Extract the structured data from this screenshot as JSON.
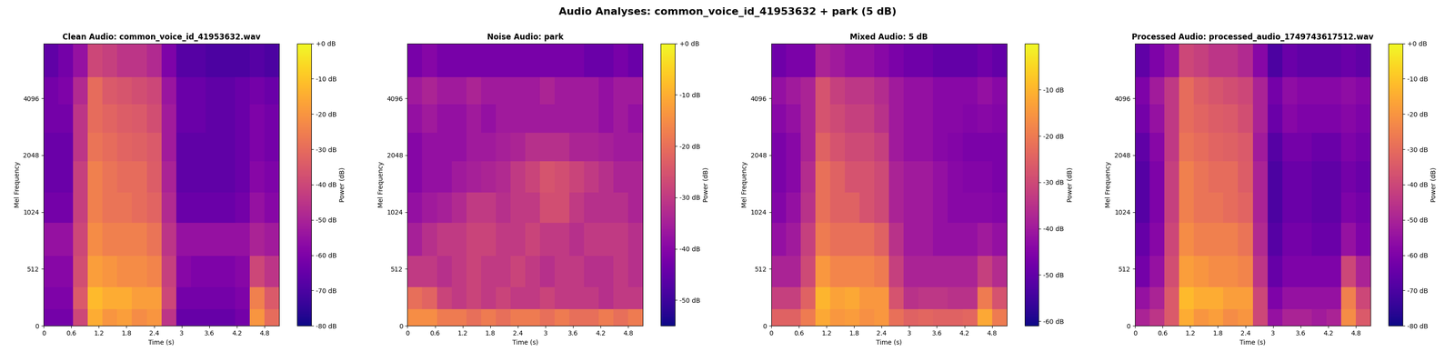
{
  "title": "Audio Analyses: common_voice_id_41953632 + park (5 dB)",
  "chart_data": [
    {
      "type": "heatmap",
      "title": "Clean Audio: common_voice_id_41953632.wav",
      "x_label": "Time (s)",
      "y_label": "Mel Frequency",
      "color": "plasma",
      "time_edges": [
        0,
        0.32,
        0.64,
        0.96,
        1.28,
        1.6,
        1.92,
        2.24,
        2.56,
        2.88,
        3.2,
        3.52,
        3.84,
        4.16,
        4.48,
        4.8,
        5.12
      ],
      "freq_edges": [
        0,
        150,
        350,
        600,
        900,
        1300,
        1900,
        2700,
        3800,
        5300,
        8000
      ],
      "xlim": [
        0,
        5.12
      ],
      "xticks": [
        0,
        0.6,
        1.2,
        1.8,
        2.4,
        3,
        3.6,
        4.2,
        4.8
      ],
      "ylim": [
        0,
        8000
      ],
      "yticks": [
        0,
        512,
        1024,
        2048,
        4096
      ],
      "cells": [
        [
          -62,
          -62,
          -40,
          -15,
          -20,
          -18,
          -22,
          -20,
          -45,
          -65,
          -65,
          -65,
          -65,
          -62,
          -20,
          -30
        ],
        [
          -60,
          -60,
          -35,
          -12,
          -15,
          -15,
          -18,
          -18,
          -40,
          -62,
          -62,
          -62,
          -62,
          -60,
          -25,
          -35
        ],
        [
          -58,
          -58,
          -38,
          -18,
          -20,
          -22,
          -22,
          -24,
          -42,
          -58,
          -60,
          -60,
          -60,
          -58,
          -40,
          -45
        ],
        [
          -55,
          -55,
          -40,
          -22,
          -25,
          -25,
          -25,
          -28,
          -45,
          -55,
          -55,
          -55,
          -55,
          -55,
          -50,
          -52
        ],
        [
          -62,
          -62,
          -42,
          -25,
          -28,
          -28,
          -30,
          -32,
          -48,
          -64,
          -64,
          -64,
          -64,
          -62,
          -55,
          -58
        ],
        [
          -64,
          -64,
          -42,
          -25,
          -28,
          -30,
          -30,
          -34,
          -50,
          -66,
          -66,
          -66,
          -66,
          -64,
          -58,
          -60
        ],
        [
          -64,
          -64,
          -45,
          -28,
          -30,
          -32,
          -33,
          -35,
          -52,
          -66,
          -66,
          -66,
          -66,
          -64,
          -60,
          -62
        ],
        [
          -62,
          -62,
          -45,
          -30,
          -32,
          -34,
          -35,
          -38,
          -52,
          -64,
          -64,
          -66,
          -66,
          -64,
          -60,
          -62
        ],
        [
          -62,
          -60,
          -48,
          -30,
          -35,
          -36,
          -38,
          -40,
          -54,
          -64,
          -64,
          -66,
          -66,
          -64,
          -62,
          -64
        ],
        [
          -66,
          -62,
          -55,
          -40,
          -42,
          -45,
          -45,
          -48,
          -60,
          -68,
          -68,
          -70,
          -70,
          -70,
          -68,
          -70
        ]
      ],
      "colorbar": {
        "label": "Power (dB)",
        "range": [
          -80,
          0
        ],
        "ticks": [
          {
            "value": -80,
            "label": "-80 dB"
          },
          {
            "value": -70,
            "label": "-70 dB"
          },
          {
            "value": -60,
            "label": "-60 dB"
          },
          {
            "value": -50,
            "label": "-50 dB"
          },
          {
            "value": -40,
            "label": "-40 dB"
          },
          {
            "value": -30,
            "label": "-30 dB"
          },
          {
            "value": -20,
            "label": "-20 dB"
          },
          {
            "value": -10,
            "label": "-10 dB"
          },
          {
            "value": 0,
            "label": "+0 dB"
          }
        ]
      }
    },
    {
      "type": "heatmap",
      "title": "Noise Audio: park",
      "x_label": "Time (s)",
      "y_label": "Mel Frequency",
      "color": "plasma",
      "time_edges": [
        0,
        0.32,
        0.64,
        0.96,
        1.28,
        1.6,
        1.92,
        2.24,
        2.56,
        2.88,
        3.2,
        3.52,
        3.84,
        4.16,
        4.48,
        4.8,
        5.12
      ],
      "freq_edges": [
        0,
        150,
        350,
        600,
        900,
        1300,
        1900,
        2700,
        3800,
        5300,
        8000
      ],
      "xlim": [
        0,
        5.12
      ],
      "xticks": [
        0,
        0.6,
        1.2,
        1.8,
        2.4,
        3,
        3.6,
        4.2,
        4.8
      ],
      "ylim": [
        0,
        8000
      ],
      "yticks": [
        0,
        512,
        1024,
        2048,
        4096
      ],
      "cells": [
        [
          -15,
          -15,
          -18,
          -18,
          -20,
          -18,
          -20,
          -18,
          -18,
          -20,
          -18,
          -20,
          -20,
          -18,
          -20,
          -18
        ],
        [
          -20,
          -22,
          -28,
          -30,
          -28,
          -30,
          -28,
          -30,
          -30,
          -28,
          -30,
          -30,
          -30,
          -32,
          -30,
          -30
        ],
        [
          -30,
          -30,
          -32,
          -30,
          -28,
          -30,
          -30,
          -28,
          -30,
          -32,
          -30,
          -30,
          -32,
          -32,
          -30,
          -32
        ],
        [
          -35,
          -32,
          -30,
          -30,
          -28,
          -28,
          -30,
          -30,
          -28,
          -30,
          -30,
          -32,
          -30,
          -30,
          -30,
          -32
        ],
        [
          -38,
          -36,
          -35,
          -33,
          -30,
          -30,
          -32,
          -30,
          -30,
          -26,
          -26,
          -30,
          -32,
          -32,
          -32,
          -34
        ],
        [
          -40,
          -38,
          -38,
          -36,
          -35,
          -34,
          -33,
          -30,
          -28,
          -25,
          -26,
          -28,
          -30,
          -32,
          -34,
          -34
        ],
        [
          -40,
          -38,
          -38,
          -38,
          -36,
          -36,
          -35,
          -34,
          -32,
          -32,
          -32,
          -34,
          -34,
          -35,
          -36,
          -36
        ],
        [
          -38,
          -36,
          -38,
          -38,
          -36,
          -38,
          -36,
          -36,
          -36,
          -36,
          -36,
          -36,
          -36,
          -38,
          -36,
          -38
        ],
        [
          -36,
          -34,
          -36,
          -36,
          -34,
          -36,
          -36,
          -36,
          -36,
          -34,
          -36,
          -36,
          -36,
          -38,
          -36,
          -36
        ],
        [
          -42,
          -40,
          -42,
          -42,
          -42,
          -42,
          -42,
          -42,
          -42,
          -42,
          -42,
          -42,
          -44,
          -44,
          -42,
          -44
        ]
      ],
      "colorbar": {
        "label": "Power (dB)",
        "range": [
          -55,
          0
        ],
        "ticks": [
          {
            "value": -50,
            "label": "-50 dB"
          },
          {
            "value": -40,
            "label": "-40 dB"
          },
          {
            "value": -30,
            "label": "-30 dB"
          },
          {
            "value": -20,
            "label": "-20 dB"
          },
          {
            "value": -10,
            "label": "-10 dB"
          },
          {
            "value": 0,
            "label": "+0 dB"
          }
        ]
      }
    },
    {
      "type": "heatmap",
      "title": "Mixed Audio: 5 dB",
      "x_label": "Time (s)",
      "y_label": "Mel Frequency",
      "color": "plasma",
      "time_edges": [
        0,
        0.32,
        0.64,
        0.96,
        1.28,
        1.6,
        1.92,
        2.24,
        2.56,
        2.88,
        3.2,
        3.52,
        3.84,
        4.16,
        4.48,
        4.8,
        5.12
      ],
      "freq_edges": [
        0,
        150,
        350,
        600,
        900,
        1300,
        1900,
        2700,
        3800,
        5300,
        8000
      ],
      "xlim": [
        0,
        5.12
      ],
      "xticks": [
        0,
        0.6,
        1.2,
        1.8,
        2.4,
        3,
        3.6,
        4.2,
        4.8
      ],
      "ylim": [
        0,
        8000
      ],
      "yticks": [
        0,
        512,
        1024,
        2048,
        4096
      ],
      "cells": [
        [
          -25,
          -25,
          -20,
          -12,
          -15,
          -14,
          -16,
          -15,
          -22,
          -25,
          -24,
          -25,
          -25,
          -24,
          -12,
          -20
        ],
        [
          -32,
          -32,
          -25,
          -10,
          -13,
          -12,
          -15,
          -15,
          -28,
          -35,
          -34,
          -34,
          -35,
          -35,
          -20,
          -28
        ],
        [
          -38,
          -38,
          -30,
          -15,
          -18,
          -18,
          -18,
          -20,
          -32,
          -38,
          -38,
          -38,
          -38,
          -38,
          -32,
          -36
        ],
        [
          -42,
          -40,
          -32,
          -20,
          -22,
          -22,
          -22,
          -25,
          -35,
          -40,
          -40,
          -42,
          -42,
          -42,
          -40,
          -42
        ],
        [
          -45,
          -42,
          -35,
          -22,
          -25,
          -25,
          -28,
          -30,
          -38,
          -40,
          -40,
          -42,
          -44,
          -44,
          -44,
          -45
        ],
        [
          -46,
          -44,
          -36,
          -22,
          -25,
          -28,
          -28,
          -30,
          -38,
          -40,
          -40,
          -42,
          -44,
          -45,
          -45,
          -46
        ],
        [
          -46,
          -44,
          -38,
          -25,
          -28,
          -30,
          -30,
          -32,
          -40,
          -42,
          -42,
          -44,
          -45,
          -46,
          -46,
          -46
        ],
        [
          -44,
          -42,
          -38,
          -28,
          -30,
          -32,
          -32,
          -35,
          -40,
          -42,
          -42,
          -44,
          -44,
          -45,
          -44,
          -45
        ],
        [
          -42,
          -40,
          -38,
          -28,
          -32,
          -34,
          -34,
          -36,
          -40,
          -42,
          -42,
          -44,
          -44,
          -44,
          -42,
          -44
        ],
        [
          -48,
          -46,
          -46,
          -38,
          -40,
          -42,
          -42,
          -44,
          -46,
          -48,
          -48,
          -50,
          -50,
          -50,
          -48,
          -50
        ]
      ],
      "colorbar": {
        "label": "Power (dB)",
        "range": [
          -61,
          0
        ],
        "ticks": [
          {
            "value": -60,
            "label": "-60 dB"
          },
          {
            "value": -50,
            "label": "-50 dB"
          },
          {
            "value": -40,
            "label": "-40 dB"
          },
          {
            "value": -30,
            "label": "-30 dB"
          },
          {
            "value": -20,
            "label": "-20 dB"
          },
          {
            "value": -10,
            "label": "-10 dB"
          }
        ]
      }
    },
    {
      "type": "heatmap",
      "title": "Processed Audio: processed_audio_1749743617512.wav",
      "x_label": "Time (s)",
      "y_label": "Mel Frequency",
      "color": "plasma",
      "time_edges": [
        0,
        0.32,
        0.64,
        0.96,
        1.28,
        1.6,
        1.92,
        2.24,
        2.56,
        2.88,
        3.2,
        3.52,
        3.84,
        4.16,
        4.48,
        4.8,
        5.12
      ],
      "freq_edges": [
        0,
        150,
        350,
        600,
        900,
        1300,
        1900,
        2700,
        3800,
        5300,
        8000
      ],
      "xlim": [
        0,
        5.12
      ],
      "xticks": [
        0,
        0.6,
        1.2,
        1.8,
        2.4,
        3,
        3.6,
        4.2,
        4.8
      ],
      "ylim": [
        0,
        8000
      ],
      "yticks": [
        0,
        512,
        1024,
        2048,
        4096
      ],
      "cells": [
        [
          -50,
          -45,
          -35,
          -15,
          -20,
          -18,
          -22,
          -20,
          -40,
          -55,
          -50,
          -50,
          -52,
          -50,
          -22,
          -35
        ],
        [
          -55,
          -50,
          -35,
          -12,
          -15,
          -15,
          -18,
          -18,
          -40,
          -60,
          -55,
          -55,
          -55,
          -55,
          -25,
          -40
        ],
        [
          -62,
          -55,
          -38,
          -18,
          -20,
          -22,
          -22,
          -24,
          -45,
          -65,
          -60,
          -60,
          -60,
          -60,
          -40,
          -50
        ],
        [
          -65,
          -58,
          -40,
          -22,
          -25,
          -25,
          -25,
          -28,
          -48,
          -68,
          -62,
          -62,
          -64,
          -64,
          -55,
          -60
        ],
        [
          -68,
          -60,
          -42,
          -25,
          -28,
          -28,
          -30,
          -32,
          -50,
          -70,
          -64,
          -64,
          -66,
          -66,
          -60,
          -62
        ],
        [
          -68,
          -60,
          -42,
          -25,
          -28,
          -30,
          -30,
          -34,
          -50,
          -70,
          -64,
          -64,
          -66,
          -66,
          -62,
          -64
        ],
        [
          -66,
          -58,
          -44,
          -28,
          -30,
          -32,
          -33,
          -35,
          -52,
          -68,
          -62,
          -62,
          -64,
          -64,
          -60,
          -62
        ],
        [
          -62,
          -55,
          -44,
          -30,
          -32,
          -34,
          -35,
          -38,
          -50,
          -64,
          -58,
          -60,
          -60,
          -60,
          -58,
          -60
        ],
        [
          -60,
          -52,
          -44,
          -30,
          -34,
          -36,
          -38,
          -40,
          -50,
          -62,
          -56,
          -58,
          -58,
          -58,
          -56,
          -58
        ],
        [
          -66,
          -60,
          -55,
          -40,
          -42,
          -45,
          -45,
          -48,
          -58,
          -70,
          -64,
          -66,
          -66,
          -66,
          -64,
          -66
        ]
      ],
      "colorbar": {
        "label": "Power (dB)",
        "range": [
          -80,
          0
        ],
        "ticks": [
          {
            "value": -80,
            "label": "-80 dB"
          },
          {
            "value": -70,
            "label": "-70 dB"
          },
          {
            "value": -60,
            "label": "-60 dB"
          },
          {
            "value": -50,
            "label": "-50 dB"
          },
          {
            "value": -40,
            "label": "-40 dB"
          },
          {
            "value": -30,
            "label": "-30 dB"
          },
          {
            "value": -20,
            "label": "-20 dB"
          },
          {
            "value": -10,
            "label": "-10 dB"
          },
          {
            "value": 0,
            "label": "+0 dB"
          }
        ]
      }
    }
  ]
}
